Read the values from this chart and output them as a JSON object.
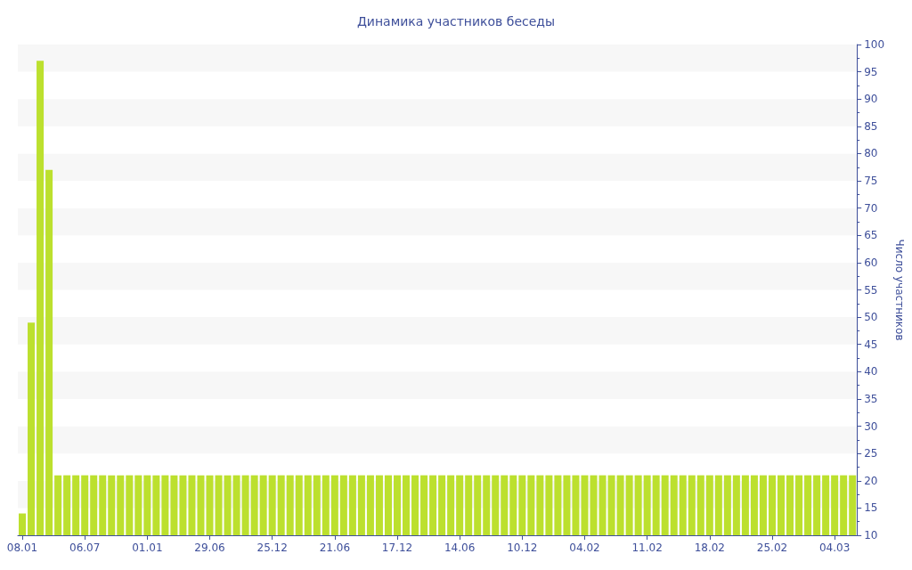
{
  "chart_data": {
    "type": "bar",
    "title": "Динамика участников беседы",
    "ylabel": "Число участников",
    "categories": [
      "08.01",
      null,
      null,
      null,
      null,
      null,
      null,
      "06.07",
      null,
      null,
      null,
      null,
      null,
      null,
      "01.01",
      null,
      null,
      null,
      null,
      null,
      null,
      "29.06",
      null,
      null,
      null,
      null,
      null,
      null,
      "25.12",
      null,
      null,
      null,
      null,
      null,
      null,
      "21.06",
      null,
      null,
      null,
      null,
      null,
      null,
      "17.12",
      null,
      null,
      null,
      null,
      null,
      null,
      "14.06",
      null,
      null,
      null,
      null,
      null,
      null,
      "10.12",
      null,
      null,
      null,
      null,
      null,
      null,
      "04.02",
      null,
      null,
      null,
      null,
      null,
      null,
      "11.02",
      null,
      null,
      null,
      null,
      null,
      null,
      "18.02",
      null,
      null,
      null,
      null,
      null,
      null,
      "25.02",
      null,
      null,
      null,
      null,
      null,
      null,
      "04.03",
      null,
      null
    ],
    "values": [
      14,
      49,
      97,
      77,
      21,
      21,
      21,
      21,
      21,
      21,
      21,
      21,
      21,
      21,
      21,
      21,
      21,
      21,
      21,
      21,
      21,
      21,
      21,
      21,
      21,
      21,
      21,
      21,
      21,
      21,
      21,
      21,
      21,
      21,
      21,
      21,
      21,
      21,
      21,
      21,
      21,
      21,
      21,
      21,
      21,
      21,
      21,
      21,
      21,
      21,
      21,
      21,
      21,
      21,
      21,
      21,
      21,
      21,
      21,
      21,
      21,
      21,
      21,
      21,
      21,
      21,
      21,
      21,
      21,
      21,
      21,
      21,
      21,
      21,
      21,
      21,
      21,
      21,
      21,
      21,
      21,
      21,
      21,
      21,
      21,
      21,
      21,
      21,
      21,
      21,
      21,
      21,
      21,
      21
    ],
    "color": "#bce02e",
    "ylim": [
      10,
      100
    ],
    "yticks": [
      10,
      15,
      20,
      25,
      30,
      35,
      40,
      45,
      50,
      55,
      60,
      65,
      70,
      75,
      80,
      85,
      90,
      95,
      100
    ]
  }
}
